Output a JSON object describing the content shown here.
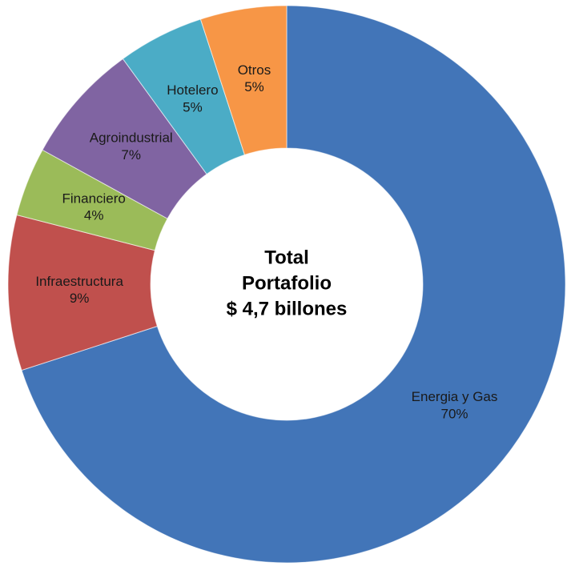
{
  "chart_data": {
    "type": "donut",
    "categories": [
      "Energia y Gas",
      "Infraestructura",
      "Financiero",
      "Agroindustrial",
      "Hotelero",
      "Otros"
    ],
    "values": [
      70,
      9,
      4,
      7,
      5,
      5
    ],
    "value_labels": [
      "70%",
      "9%",
      "4%",
      "7%",
      "5%",
      "5%"
    ],
    "colors": [
      "#4275b8",
      "#c0504d",
      "#9bbb59",
      "#8064a2",
      "#4bacc6",
      "#f79646"
    ],
    "center_text": [
      "Total",
      "Portafolio",
      "$ 4,7 billones"
    ]
  }
}
